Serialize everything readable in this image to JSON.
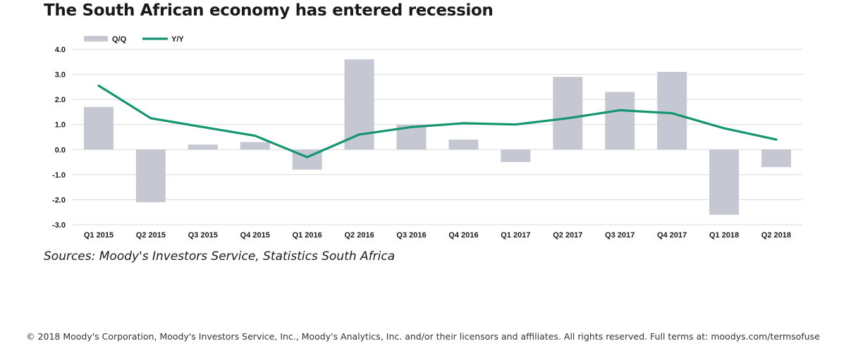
{
  "title": "The South African economy has entered recession",
  "source": "Sources: Moody's Investors Service, Statistics South Africa",
  "footer": "© 2018 Moody's Corporation, Moody's Investors Service, Inc., Moody's Analytics, Inc. and/or their licensors and affiliates. All rights reserved. Full terms at: moodys.com/termsofuse",
  "colors": {
    "bar": "#c5c8d2",
    "line": "#14956f",
    "grid": "#d9d9d9",
    "text": "#1a1a1a"
  },
  "chart_data": {
    "type": "bar",
    "categories": [
      "Q1 2015",
      "Q2 2015",
      "Q3 2015",
      "Q4 2015",
      "Q1 2016",
      "Q2 2016",
      "Q3 2016",
      "Q4 2016",
      "Q1 2017",
      "Q2 2017",
      "Q3 2017",
      "Q4 2017",
      "Q1 2018",
      "Q2 2018"
    ],
    "series": [
      {
        "name": "Q/Q",
        "type": "bar",
        "values": [
          1.7,
          -2.1,
          0.2,
          0.3,
          -0.8,
          3.6,
          1.0,
          0.4,
          -0.5,
          2.9,
          2.3,
          3.1,
          -2.6,
          -0.7
        ]
      },
      {
        "name": "Y/Y",
        "type": "line",
        "values": [
          2.55,
          1.25,
          0.9,
          0.55,
          -0.3,
          0.6,
          0.9,
          1.05,
          1.0,
          1.25,
          1.57,
          1.45,
          0.85,
          0.4
        ]
      }
    ],
    "yticks": [
      "4.0",
      "3.0",
      "2.0",
      "1.0",
      "0.0",
      "-1.0",
      "-2.0",
      "-3.0"
    ],
    "ylim": [
      -3,
      4
    ],
    "grid": true,
    "legend_position": "top-left"
  }
}
